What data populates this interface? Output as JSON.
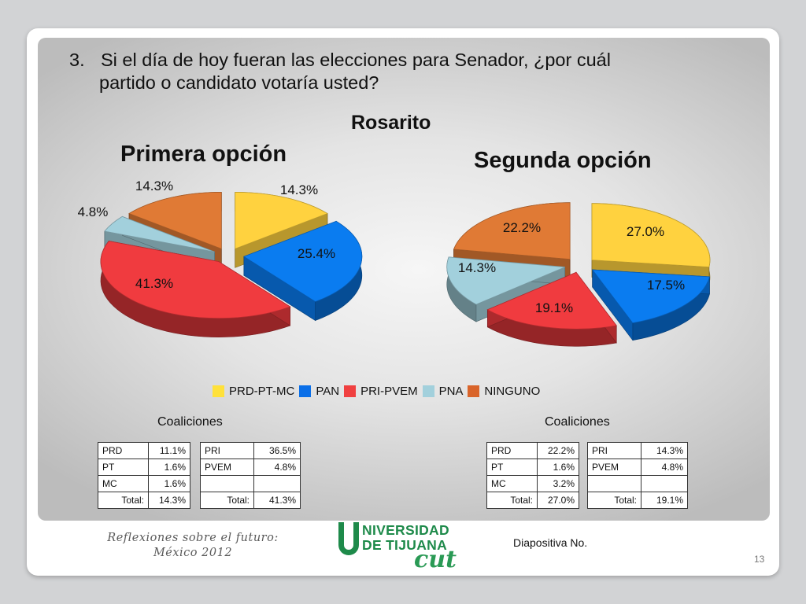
{
  "question": {
    "number": "3.",
    "line1": "Si el día de hoy fueran las elecciones para Senador, ¿por cuál",
    "line2": "partido o candidato votaría usted?"
  },
  "location_title": "Rosarito",
  "colors": {
    "PRD-PT-MC": "#ffd23f",
    "PAN": "#0a7cf0",
    "PRI-PVEM": "#f03b3f",
    "PNA": "#a2d0dc",
    "NINGUNO": "#e07a35"
  },
  "chart_data": [
    {
      "type": "pie",
      "title": "Primera opción",
      "categories": [
        "PRD-PT-MC",
        "PAN",
        "PRI-PVEM",
        "PNA",
        "NINGUNO"
      ],
      "values": [
        14.3,
        25.4,
        41.3,
        4.8,
        14.3
      ],
      "labels": [
        "14.3%",
        "25.4%",
        "41.3%",
        "4.8%",
        "14.3%"
      ],
      "exploded": true,
      "style": "3d"
    },
    {
      "type": "pie",
      "title": "Segunda opción",
      "categories": [
        "PRD-PT-MC",
        "PAN",
        "PRI-PVEM",
        "PNA",
        "NINGUNO"
      ],
      "values": [
        27.0,
        17.5,
        19.1,
        14.3,
        22.2
      ],
      "labels": [
        "27.0%",
        "17.5%",
        "19.1%",
        "14.3%",
        "22.2%"
      ],
      "exploded": true,
      "style": "3d"
    }
  ],
  "legend": [
    "PRD-PT-MC",
    "PAN",
    "PRI-PVEM",
    "PNA",
    "NINGUNO"
  ],
  "coaliciones_label": "Coaliciones",
  "tables": {
    "first_a": [
      [
        "PRD",
        "11.1%"
      ],
      [
        "PT",
        "1.6%"
      ],
      [
        "MC",
        "1.6%"
      ],
      [
        "Total:",
        "14.3%"
      ]
    ],
    "first_b": [
      [
        "PRI",
        "36.5%"
      ],
      [
        "PVEM",
        "4.8%"
      ],
      [
        "",
        ""
      ],
      [
        "Total:",
        "41.3%"
      ]
    ],
    "second_a": [
      [
        "PRD",
        "22.2%"
      ],
      [
        "PT",
        "1.6%"
      ],
      [
        "MC",
        "3.2%"
      ],
      [
        "Total:",
        "27.0%"
      ]
    ],
    "second_b": [
      [
        "PRI",
        "14.3%"
      ],
      [
        "PVEM",
        "4.8%"
      ],
      [
        "",
        ""
      ],
      [
        "Total:",
        "19.1%"
      ]
    ]
  },
  "footer": {
    "title_line1": "Reflexiones sobre el futuro:",
    "title_line2": "México 2012",
    "logo_line1": "NIVERSIDAD",
    "logo_line2": "DE TIJUANA",
    "logo_script": "cut",
    "slide_label": "Diapositiva No.",
    "page_number": "13"
  }
}
